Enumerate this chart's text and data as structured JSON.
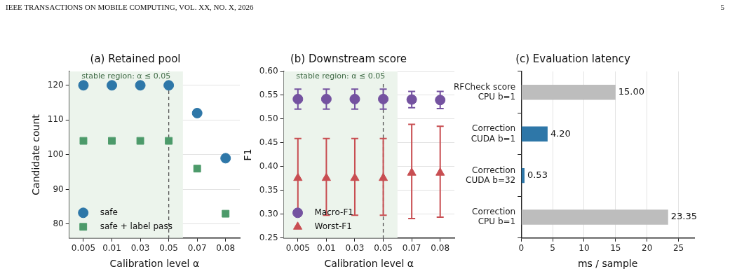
{
  "chart_data": [
    {
      "type": "scatter",
      "title": "(a) Retained pool",
      "xlabel": "Calibration level α",
      "ylabel": "Candidate count",
      "annotations": [
        "IEEE TRANSACTIONS ON MOBILE COMPUTING, VOL. XX, NO. X, 2026",
        "5"
      ],
      "categories": [
        "0.005",
        "0.01",
        "0.03",
        "0.05",
        "0.07",
        "0.08"
      ],
      "series": [
        {
          "name": "safe",
          "color": "#2e77a8",
          "marker": "circle",
          "values": [
            120,
            120,
            120,
            120,
            112,
            99
          ]
        },
        {
          "name": "safe + label pass",
          "color": "#4c9a6a",
          "marker": "square",
          "values": [
            104,
            104,
            104,
            104,
            96,
            83
          ]
        }
      ],
      "ylim": [
        76,
        124
      ],
      "yticks": [
        80,
        90,
        100,
        110,
        120
      ],
      "grid": "y",
      "legend": "bottom left",
      "bands": [
        {
          "axis": "x",
          "from": "0.005",
          "to": "0.05",
          "label": "stable region: α ≤ 0.05",
          "color": "#ecf4ec"
        }
      ],
      "ref_lines": [
        {
          "axis": "x",
          "value": "0.05",
          "color": "#555555",
          "line_style": "dashed"
        }
      ]
    },
    {
      "type": "scatter",
      "title": "(b) Downstream score",
      "xlabel": "Calibration level α",
      "ylabel": "F1",
      "categories": [
        "0.005",
        "0.01",
        "0.03",
        "0.05",
        "0.07",
        "0.08"
      ],
      "series": [
        {
          "name": "Macro-F1",
          "color": "#7452a0",
          "marker": "circle",
          "values": [
            0.542,
            0.542,
            0.542,
            0.542,
            0.541,
            0.54
          ],
          "errors": [
            0.021,
            0.021,
            0.021,
            0.021,
            0.017,
            0.018
          ]
        },
        {
          "name": "Worst-F1",
          "color": "#c84e52",
          "marker": "triangle",
          "values": [
            0.376,
            0.376,
            0.376,
            0.376,
            0.387,
            0.387
          ],
          "errors": [
            [
              0.298,
              0.459
            ],
            [
              0.298,
              0.459
            ],
            [
              0.298,
              0.459
            ],
            [
              0.298,
              0.459
            ],
            [
              0.291,
              0.489
            ],
            [
              0.294,
              0.485
            ]
          ]
        }
      ],
      "ylim": [
        0.25,
        0.6
      ],
      "yticks": [
        {
          "value": 0.25,
          "label": "0.25"
        },
        {
          "value": 0.3,
          "label": "0.30"
        },
        {
          "value": 0.35,
          "label": "0.35"
        },
        {
          "value": 0.4,
          "label": "0.40"
        },
        {
          "value": 0.45,
          "label": "0.45"
        },
        {
          "value": 0.5,
          "label": "0.50"
        },
        {
          "value": 0.55,
          "label": "0.55"
        },
        {
          "value": 0.6,
          "label": "0.60"
        }
      ],
      "grid": "y",
      "legend": "bottom left",
      "bands": [
        {
          "axis": "x",
          "from": "0.005",
          "to": "0.05",
          "label": "stable region: α ≤ 0.05",
          "color": "#ecf4ec"
        }
      ],
      "ref_lines": [
        {
          "axis": "x",
          "value": "0.05",
          "color": "#555555",
          "line_style": "dashed"
        }
      ]
    },
    {
      "type": "bar",
      "orientation": "horizontal",
      "title": "(c) Evaluation latency",
      "xlabel": "ms / sample",
      "categories": [
        "RFCheck score\nCPU b=1",
        "Correction\nCUDA b=1",
        "Correction\nCUDA b=32",
        "Correction\nCPU b=1"
      ],
      "values": [
        15.0,
        4.2,
        0.53,
        23.35
      ],
      "colors": [
        "#bdbdbd",
        "#2e77a8",
        "#2e77a8",
        "#bdbdbd"
      ],
      "value_labels": [
        "15.00",
        "4.20",
        "0.53",
        "23.35"
      ],
      "xlim": [
        0,
        27.5
      ],
      "xticks": [
        0,
        5,
        10,
        15,
        20,
        25
      ],
      "grid": "x"
    }
  ]
}
